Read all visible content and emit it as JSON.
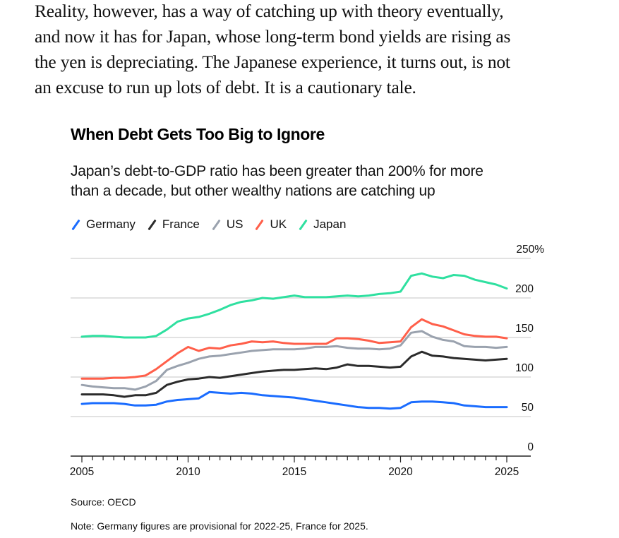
{
  "article": {
    "paragraph": "Reality, however, has a way of catching up with theory eventually, and now it has for Japan, whose long-term bond yields are rising as the yen is depreciating. The Japanese experience, it turns out, is not an excuse to run up lots of debt. It is a cautionary tale.",
    "lines": [
      "Reality, however, has a way of catching up with theory eventually,",
      "and now it has for Japan, whose long-term bond yields are rising as",
      "the yen is depreciating. The Japanese experience, it turns out, is not",
      "an excuse to run up lots of debt. It is a cautionary tale."
    ]
  },
  "chart_data": {
    "type": "line",
    "title": "When Debt Gets Too Big to Ignore",
    "subtitle": "Japan’s debt-to-GDP ratio has been greater than 200% for more than a decade, but other wealthy nations are catching up",
    "subtitle_lines": [
      "Japan’s debt-to-GDP ratio has been greater than 200% for more",
      "than a decade, but other wealthy nations are catching up"
    ],
    "xlabel": "",
    "ylabel": "",
    "xlim": [
      2005,
      2025
    ],
    "ylim": [
      0,
      250
    ],
    "x_ticks": [
      2005,
      2010,
      2015,
      2020,
      2025
    ],
    "x_tick_labels": [
      "2005",
      "2010",
      "2015",
      "2020",
      "2025"
    ],
    "y_ticks": [
      0,
      50,
      100,
      150,
      200,
      250
    ],
    "y_tick_labels": [
      "0",
      "50",
      "100",
      "150",
      "200",
      "250%"
    ],
    "y_axis_side": "right",
    "grid": true,
    "legend_position": "top-left",
    "x": [
      2005,
      2005.5,
      2006,
      2006.5,
      2007,
      2007.5,
      2008,
      2008.5,
      2009,
      2009.5,
      2010,
      2010.5,
      2011,
      2011.5,
      2012,
      2012.5,
      2013,
      2013.5,
      2014,
      2014.5,
      2015,
      2015.5,
      2016,
      2016.5,
      2017,
      2017.5,
      2018,
      2018.5,
      2019,
      2019.5,
      2020,
      2020.5,
      2021,
      2021.5,
      2022,
      2022.5,
      2023,
      2023.5,
      2024,
      2024.5,
      2025
    ],
    "series": [
      {
        "name": "Germany",
        "color": "#1a6cff",
        "values": [
          66,
          67,
          67,
          67,
          66,
          64,
          64,
          65,
          69,
          71,
          72,
          73,
          81,
          80,
          79,
          80,
          79,
          77,
          76,
          75,
          74,
          72,
          70,
          68,
          66,
          64,
          62,
          61,
          61,
          60,
          61,
          68,
          69,
          69,
          68,
          67,
          64,
          63,
          62,
          62,
          62
        ]
      },
      {
        "name": "France",
        "color": "#2b2b2b",
        "values": [
          78,
          78,
          78,
          77,
          75,
          77,
          77,
          80,
          90,
          94,
          97,
          98,
          100,
          99,
          101,
          103,
          105,
          107,
          108,
          109,
          109,
          110,
          111,
          110,
          112,
          116,
          114,
          114,
          113,
          112,
          113,
          126,
          132,
          127,
          126,
          124,
          123,
          122,
          121,
          122,
          123
        ]
      },
      {
        "name": "US",
        "color": "#9aa2ae",
        "values": [
          90,
          88,
          87,
          86,
          86,
          84,
          88,
          95,
          109,
          114,
          118,
          123,
          126,
          127,
          129,
          131,
          133,
          134,
          135,
          135,
          135,
          136,
          138,
          138,
          139,
          137,
          136,
          136,
          135,
          136,
          140,
          156,
          158,
          151,
          147,
          145,
          139,
          138,
          138,
          137,
          138
        ]
      },
      {
        "name": "UK",
        "color": "#ff5f4a",
        "values": [
          98,
          98,
          98,
          99,
          99,
          100,
          102,
          110,
          120,
          130,
          138,
          133,
          137,
          136,
          140,
          142,
          145,
          144,
          145,
          143,
          142,
          142,
          142,
          142,
          149,
          149,
          148,
          146,
          143,
          144,
          145,
          163,
          173,
          167,
          164,
          159,
          154,
          152,
          151,
          151,
          149
        ]
      },
      {
        "name": "Japan",
        "color": "#2fe0a0",
        "values": [
          151,
          152,
          152,
          151,
          150,
          150,
          150,
          152,
          160,
          170,
          174,
          176,
          180,
          185,
          191,
          195,
          197,
          200,
          199,
          201,
          203,
          201,
          201,
          201,
          202,
          203,
          202,
          203,
          205,
          206,
          208,
          228,
          231,
          227,
          225,
          229,
          228,
          223,
          220,
          217,
          212
        ]
      }
    ]
  },
  "legend": {
    "items": [
      {
        "label": "Germany",
        "color": "#1a6cff"
      },
      {
        "label": "France",
        "color": "#2b2b2b"
      },
      {
        "label": "US",
        "color": "#9aa2ae"
      },
      {
        "label": "UK",
        "color": "#ff5f4a"
      },
      {
        "label": "Japan",
        "color": "#2fe0a0"
      }
    ]
  },
  "footer": {
    "source": "Source: OECD",
    "note": "Note: Germany figures are provisional for 2022-25, France for 2025."
  },
  "colors": {
    "gridline": "#d0d0d0",
    "axis": "#222222"
  }
}
